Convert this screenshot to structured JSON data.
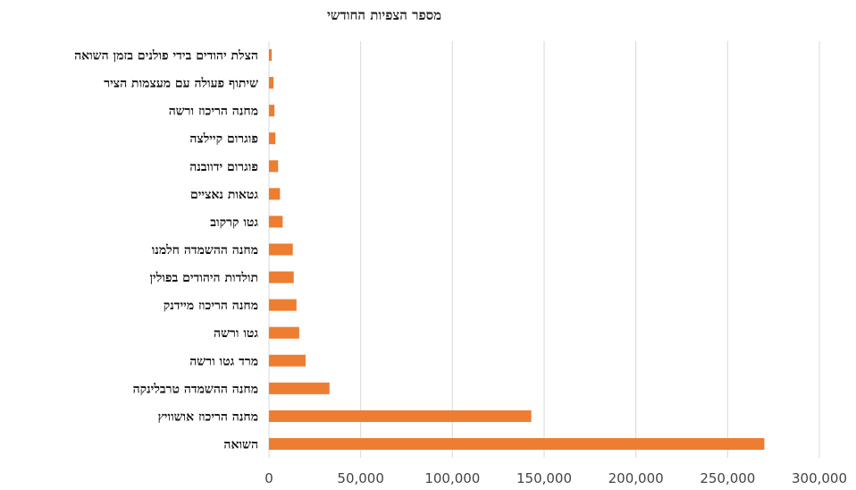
{
  "chart_data": {
    "type": "bar",
    "orientation": "horizontal",
    "title": "מספר הצפיות החודשי",
    "xlabel": "",
    "ylabel": "",
    "categories": [
      "הצלת יהודים בידי פולנים בזמן השואה",
      "שיתוף פעולה עם מעצמות הציר",
      "מחנה הריכוז ורשה",
      "פוגרום קיילצה",
      "פוגרום ידוובנה",
      "גטאות נאציים",
      "גטו קרקוב",
      "מחנה ההשמדה חלמנו",
      "תולדות היהודים בפולין",
      "מחנה הריכוז מיידנק",
      "גטו ורשה",
      "מרד גטו ורשה",
      "מחנה ההשמדה טרבלינקה",
      "מחנה הריכוז אושוויץ",
      "השואה"
    ],
    "values": [
      1500,
      2500,
      3000,
      3500,
      5000,
      6000,
      7500,
      13000,
      13500,
      15000,
      16500,
      20000,
      33000,
      143000,
      270000
    ],
    "xlim": [
      0,
      300000
    ],
    "xticks": [
      0,
      50000,
      100000,
      150000,
      200000,
      250000,
      300000
    ],
    "xtick_labels": [
      "0",
      "50,000",
      "100,000",
      "150,000",
      "200,000",
      "250,000",
      "300,000"
    ],
    "bar_color": "#ED7D31",
    "gridlines": "vertical",
    "legend": "none"
  }
}
